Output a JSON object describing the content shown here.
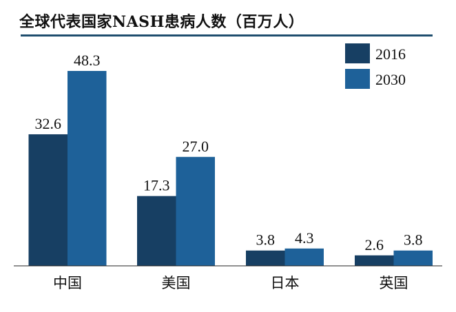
{
  "chart_data": {
    "type": "bar",
    "title": "全球代表国家NASH患病人数（百万人）",
    "categories": [
      "中国",
      "美国",
      "日本",
      "英国"
    ],
    "series": [
      {
        "name": "2016",
        "values": [
          32.6,
          17.3,
          3.8,
          2.6
        ],
        "color": "#173f63"
      },
      {
        "name": "2030",
        "values": [
          48.3,
          27.0,
          4.3,
          3.8
        ],
        "color": "#1e6199"
      }
    ],
    "value_labels": [
      [
        "32.6",
        "17.3",
        "3.8",
        "2.6"
      ],
      [
        "48.3",
        "27.0",
        "4.3",
        "3.8"
      ]
    ],
    "xlabel": "",
    "ylabel": "",
    "ylim": [
      0,
      50
    ],
    "grid": false,
    "legend": "top-right"
  }
}
